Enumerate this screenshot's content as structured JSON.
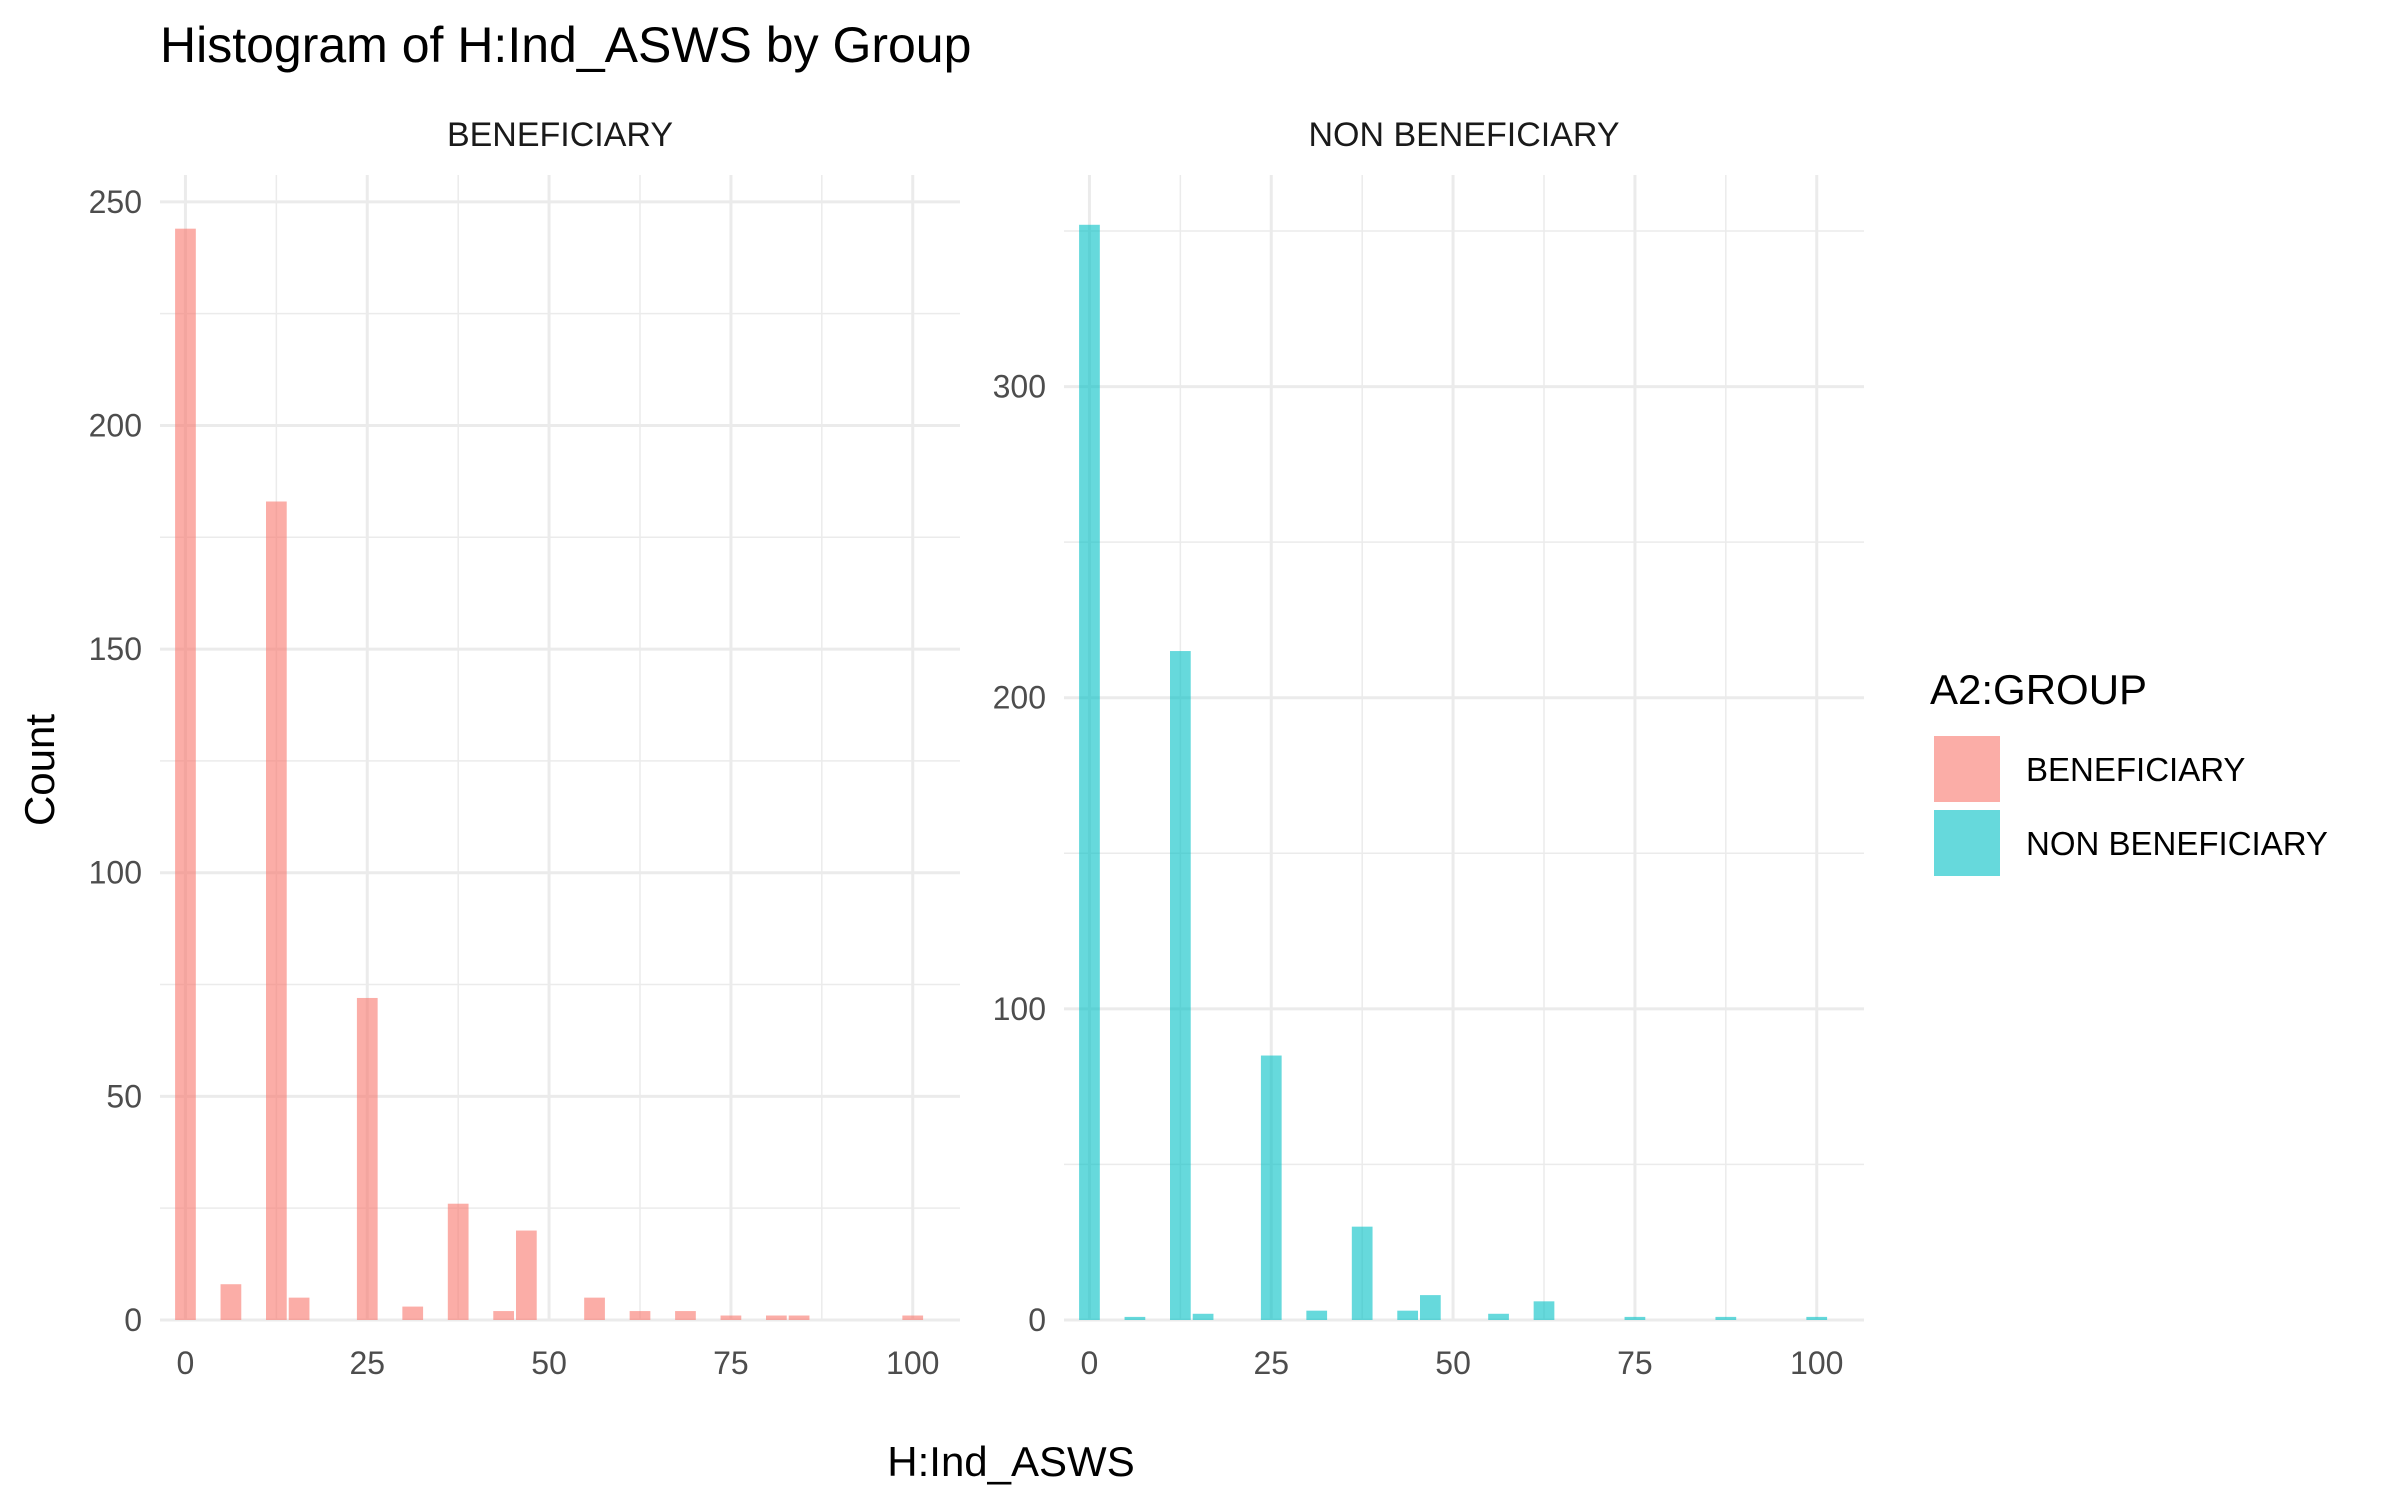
{
  "chart_data": {
    "type": "bar",
    "title": "Histogram of H:Ind_ASWS by Group",
    "xlabel": "H:Ind_ASWS",
    "ylabel": "Count",
    "x_ticks": [
      "0",
      "25",
      "50",
      "75",
      "100"
    ],
    "grid": true,
    "legend": {
      "title": "A2:GROUP",
      "placement": "right",
      "entries": [
        {
          "label": "BENEFICIARY",
          "color": "#F8766D"
        },
        {
          "label": "NON BENEFICIARY",
          "color": "#00BFC4"
        }
      ]
    },
    "bin_width": 3.125,
    "panels": [
      {
        "strip_label": "BENEFICIARY",
        "color": "#F8766D",
        "xlim": [
          -3.5,
          106.5
        ],
        "ylim": [
          0,
          256
        ],
        "y_ticks": [
          "0",
          "50",
          "100",
          "150",
          "200",
          "250"
        ],
        "y_tick_values": [
          0,
          50,
          100,
          150,
          200,
          250
        ],
        "x": [
          0,
          6.25,
          12.5,
          15.625,
          25,
          31.25,
          37.5,
          43.75,
          46.875,
          56.25,
          62.5,
          68.75,
          75,
          81.25,
          84.375,
          100
        ],
        "values": [
          244,
          8,
          183,
          5,
          72,
          3,
          26,
          2,
          20,
          5,
          2,
          2,
          1,
          1,
          1,
          1
        ]
      },
      {
        "strip_label": "NON BENEFICIARY",
        "color": "#00BFC4",
        "xlim": [
          -3.5,
          106.5
        ],
        "ylim": [
          0,
          368
        ],
        "y_ticks": [
          "0",
          "100",
          "200",
          "300"
        ],
        "y_tick_values": [
          0,
          100,
          200,
          300
        ],
        "x": [
          0,
          6.25,
          12.5,
          15.625,
          25,
          31.25,
          37.5,
          43.75,
          46.875,
          56.25,
          62.5,
          75,
          87.5,
          100
        ],
        "values": [
          352,
          1,
          215,
          2,
          85,
          3,
          30,
          3,
          8,
          2,
          6,
          1,
          1,
          1
        ]
      }
    ]
  }
}
